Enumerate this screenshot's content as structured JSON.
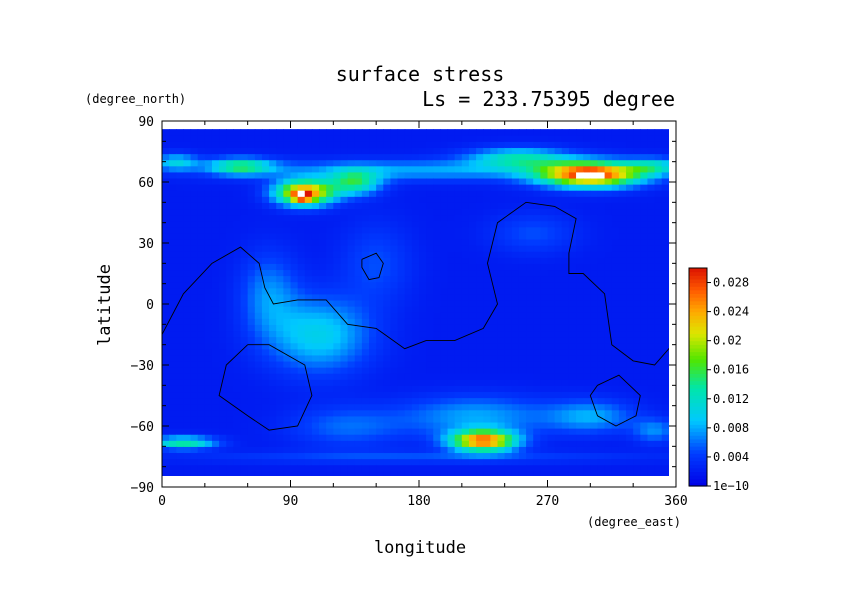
{
  "chart_data": {
    "type": "heatmap",
    "title": "surface stress",
    "subtitle": "Ls = 233.75395 degree",
    "xlabel": "longitude",
    "ylabel": "latitude",
    "x_units": "(degree_east)",
    "y_units": "(degree_north)",
    "xlim": [
      0,
      360
    ],
    "ylim": [
      -90,
      90
    ],
    "x_ticks": [
      0,
      90,
      180,
      270,
      360
    ],
    "y_ticks": [
      90,
      60,
      30,
      0,
      -30,
      -60,
      -90
    ],
    "x_tick_labels": [
      "0",
      "90",
      "180",
      "270",
      "360"
    ],
    "y_tick_labels": [
      "90",
      "60",
      "30",
      "0",
      "−30",
      "−60",
      "−90"
    ],
    "data_lat_range": [
      -85,
      85
    ],
    "colorbar": {
      "min": 0,
      "max": 0.03,
      "tick_values": [
        0,
        0.004,
        0.008,
        0.012,
        0.016,
        0.02,
        0.024,
        0.028
      ],
      "tick_labels": [
        "1e−10",
        "0.004",
        "0.008",
        "0.012",
        "0.016",
        "0.02",
        "0.024",
        "0.028"
      ]
    },
    "background_value": 0.002,
    "features": [
      {
        "name": "northern band",
        "lon": 180,
        "lat": 66,
        "slon": 130,
        "slat": 5,
        "value": 0.006
      },
      {
        "name": "high 1",
        "lon": 100,
        "lat": 55,
        "slon": 20,
        "slat": 6,
        "value": 0.024
      },
      {
        "name": "high 1 core",
        "lon": 98,
        "lat": 53,
        "slon": 6,
        "slat": 2.5,
        "value": 0.012
      },
      {
        "name": "high 1 west",
        "lon": 55,
        "lat": 68,
        "slon": 22,
        "slat": 4,
        "value": 0.012
      },
      {
        "name": "high 1 east",
        "lon": 135,
        "lat": 60,
        "slon": 18,
        "slat": 6,
        "value": 0.012
      },
      {
        "name": "high 2",
        "lon": 300,
        "lat": 64,
        "slon": 35,
        "slat": 6,
        "value": 0.026
      },
      {
        "name": "high 2 core",
        "lon": 300,
        "lat": 64,
        "slon": 7,
        "slat": 1.5,
        "value": 0.008
      },
      {
        "name": "high 2 band",
        "lon": 250,
        "lat": 72,
        "slon": 35,
        "slat": 5,
        "value": 0.01
      },
      {
        "name": "east band",
        "lon": 345,
        "lat": 68,
        "slon": 20,
        "slat": 4,
        "value": 0.008
      },
      {
        "name": "west edge",
        "lon": 10,
        "lat": 70,
        "slon": 15,
        "slat": 4,
        "value": 0.008
      },
      {
        "name": "equatorial feature",
        "lon": 110,
        "lat": -15,
        "slon": 35,
        "slat": 18,
        "value": 0.008
      },
      {
        "name": "equatorial feature 2",
        "lon": 75,
        "lat": 5,
        "slon": 20,
        "slat": 20,
        "value": 0.005
      },
      {
        "name": "feature mid",
        "lon": 150,
        "lat": 20,
        "slon": 25,
        "slat": 20,
        "value": 0.003
      },
      {
        "name": "feature east",
        "lon": 260,
        "lat": 35,
        "slon": 30,
        "slat": 10,
        "value": 0.003
      },
      {
        "name": "southern high",
        "lon": 225,
        "lat": -67,
        "slon": 22,
        "slat": 5,
        "value": 0.024
      },
      {
        "name": "southern band",
        "lon": 220,
        "lat": -55,
        "slon": 50,
        "slat": 10,
        "value": 0.006
      },
      {
        "name": "southern west",
        "lon": 15,
        "lat": -68,
        "slon": 22,
        "slat": 3,
        "value": 0.012
      },
      {
        "name": "southern east",
        "lon": 300,
        "lat": -55,
        "slon": 30,
        "slat": 8,
        "value": 0.006
      },
      {
        "name": "southern east 2",
        "lon": 345,
        "lat": -62,
        "slon": 15,
        "slat": 6,
        "value": 0.005
      },
      {
        "name": "southern mid",
        "lon": 130,
        "lat": -60,
        "slon": 40,
        "slat": 10,
        "value": 0.004
      },
      {
        "name": "southern belt",
        "lon": 180,
        "lat": -75,
        "slon": 160,
        "slat": 3,
        "value": 0.003
      }
    ],
    "contour_lines": [
      [
        [
          0,
          -15
        ],
        [
          15,
          5
        ],
        [
          35,
          20
        ],
        [
          55,
          28
        ],
        [
          68,
          20
        ],
        [
          72,
          8
        ],
        [
          78,
          0
        ],
        [
          95,
          2
        ],
        [
          115,
          2
        ],
        [
          130,
          -10
        ],
        [
          150,
          -12
        ],
        [
          170,
          -22
        ],
        [
          185,
          -18
        ],
        [
          205,
          -18
        ],
        [
          225,
          -12
        ],
        [
          235,
          0
        ],
        [
          228,
          20
        ],
        [
          235,
          40
        ],
        [
          255,
          50
        ],
        [
          275,
          48
        ],
        [
          290,
          42
        ],
        [
          285,
          25
        ],
        [
          285,
          15
        ],
        [
          295,
          15
        ],
        [
          310,
          5
        ],
        [
          315,
          -20
        ],
        [
          330,
          -28
        ],
        [
          345,
          -30
        ],
        [
          360,
          -18
        ]
      ],
      [
        [
          60,
          -20
        ],
        [
          75,
          -20
        ],
        [
          100,
          -30
        ],
        [
          105,
          -45
        ],
        [
          95,
          -60
        ],
        [
          75,
          -62
        ],
        [
          60,
          -55
        ],
        [
          40,
          -45
        ],
        [
          45,
          -30
        ],
        [
          60,
          -20
        ]
      ],
      [
        [
          140,
          22
        ],
        [
          150,
          25
        ],
        [
          155,
          20
        ],
        [
          152,
          13
        ],
        [
          145,
          12
        ],
        [
          140,
          18
        ],
        [
          140,
          22
        ]
      ],
      [
        [
          305,
          -40
        ],
        [
          320,
          -35
        ],
        [
          335,
          -45
        ],
        [
          332,
          -55
        ],
        [
          318,
          -60
        ],
        [
          305,
          -55
        ],
        [
          300,
          -45
        ],
        [
          305,
          -40
        ]
      ]
    ]
  }
}
